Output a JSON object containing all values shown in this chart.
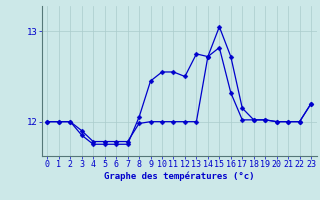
{
  "xlabel": "Graphe des températures (°c)",
  "background_color": "#cce8e8",
  "line_color": "#0000cc",
  "ytick_labels": [
    "12",
    "13"
  ],
  "ytick_vals": [
    12.0,
    13.0
  ],
  "xlim": [
    -0.5,
    23.5
  ],
  "ylim": [
    11.62,
    13.28
  ],
  "grid_color": "#aacccc",
  "font_color": "#0000cc",
  "s1_x": [
    0,
    1,
    2,
    3,
    4,
    5,
    6,
    7,
    8,
    9,
    10,
    11,
    12,
    13,
    14,
    15,
    16,
    17,
    18,
    19,
    20,
    21,
    22,
    23
  ],
  "s1_y": [
    12.0,
    12.0,
    12.0,
    11.85,
    11.75,
    11.75,
    11.75,
    11.75,
    12.05,
    12.45,
    12.55,
    12.55,
    12.5,
    12.75,
    12.72,
    13.05,
    12.72,
    12.15,
    12.02,
    12.02,
    12.0,
    12.0,
    12.0,
    12.2
  ],
  "s2_x": [
    0,
    1,
    2,
    3,
    4,
    5,
    6,
    7,
    8,
    9,
    10,
    11,
    12,
    13,
    14,
    15,
    16,
    17,
    18,
    19,
    20,
    21,
    22,
    23
  ],
  "s2_y": [
    12.0,
    12.0,
    12.0,
    11.9,
    11.78,
    11.78,
    11.78,
    11.78,
    11.98,
    12.0,
    12.0,
    12.0,
    12.0,
    12.0,
    12.72,
    12.82,
    12.32,
    12.02,
    12.02,
    12.02,
    12.0,
    12.0,
    12.0,
    12.2
  ],
  "marker_size": 2.5,
  "linewidth": 0.9,
  "xlabel_fontsize": 6.5,
  "tick_fontsize": 6.0
}
